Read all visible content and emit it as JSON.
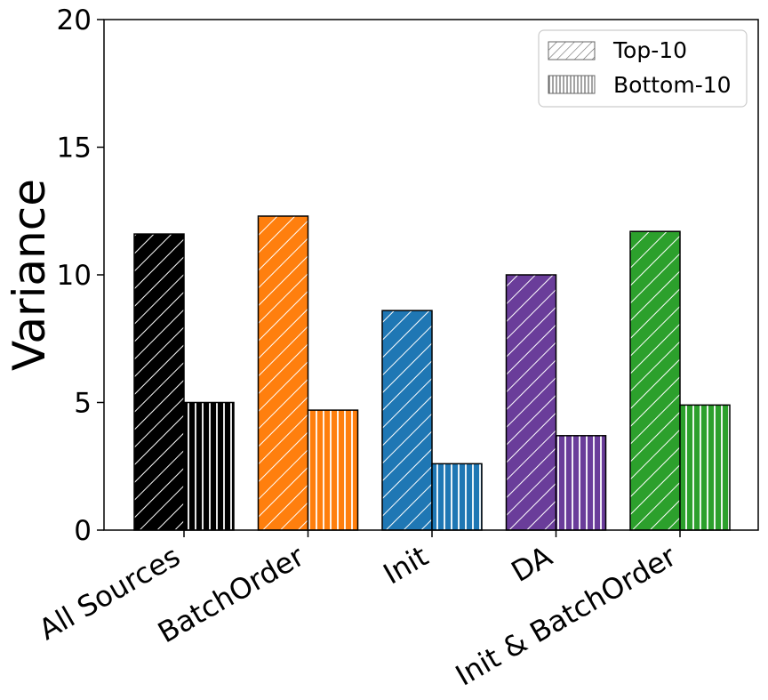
{
  "chart_data": {
    "type": "bar",
    "ylabel": "Variance",
    "xlabel": "",
    "title": "",
    "ylim": [
      0,
      20
    ],
    "yticks": [
      0,
      5,
      10,
      15,
      20
    ],
    "categories": [
      "All Sources",
      "BatchOrder",
      "Init",
      "DA",
      "Init & BatchOrder"
    ],
    "category_colors": [
      "#000000",
      "#ff7f0e",
      "#1f77b4",
      "#6a3d9a",
      "#2ca02c"
    ],
    "series": [
      {
        "name": "Top-10",
        "hatch": "diagonal",
        "values": [
          11.6,
          12.3,
          8.6,
          10.0,
          11.7
        ]
      },
      {
        "name": "Bottom-10",
        "hatch": "vertical",
        "values": [
          5.0,
          4.7,
          2.6,
          3.7,
          4.9
        ]
      }
    ],
    "legend": {
      "placement": "top-right"
    },
    "grid": false
  }
}
